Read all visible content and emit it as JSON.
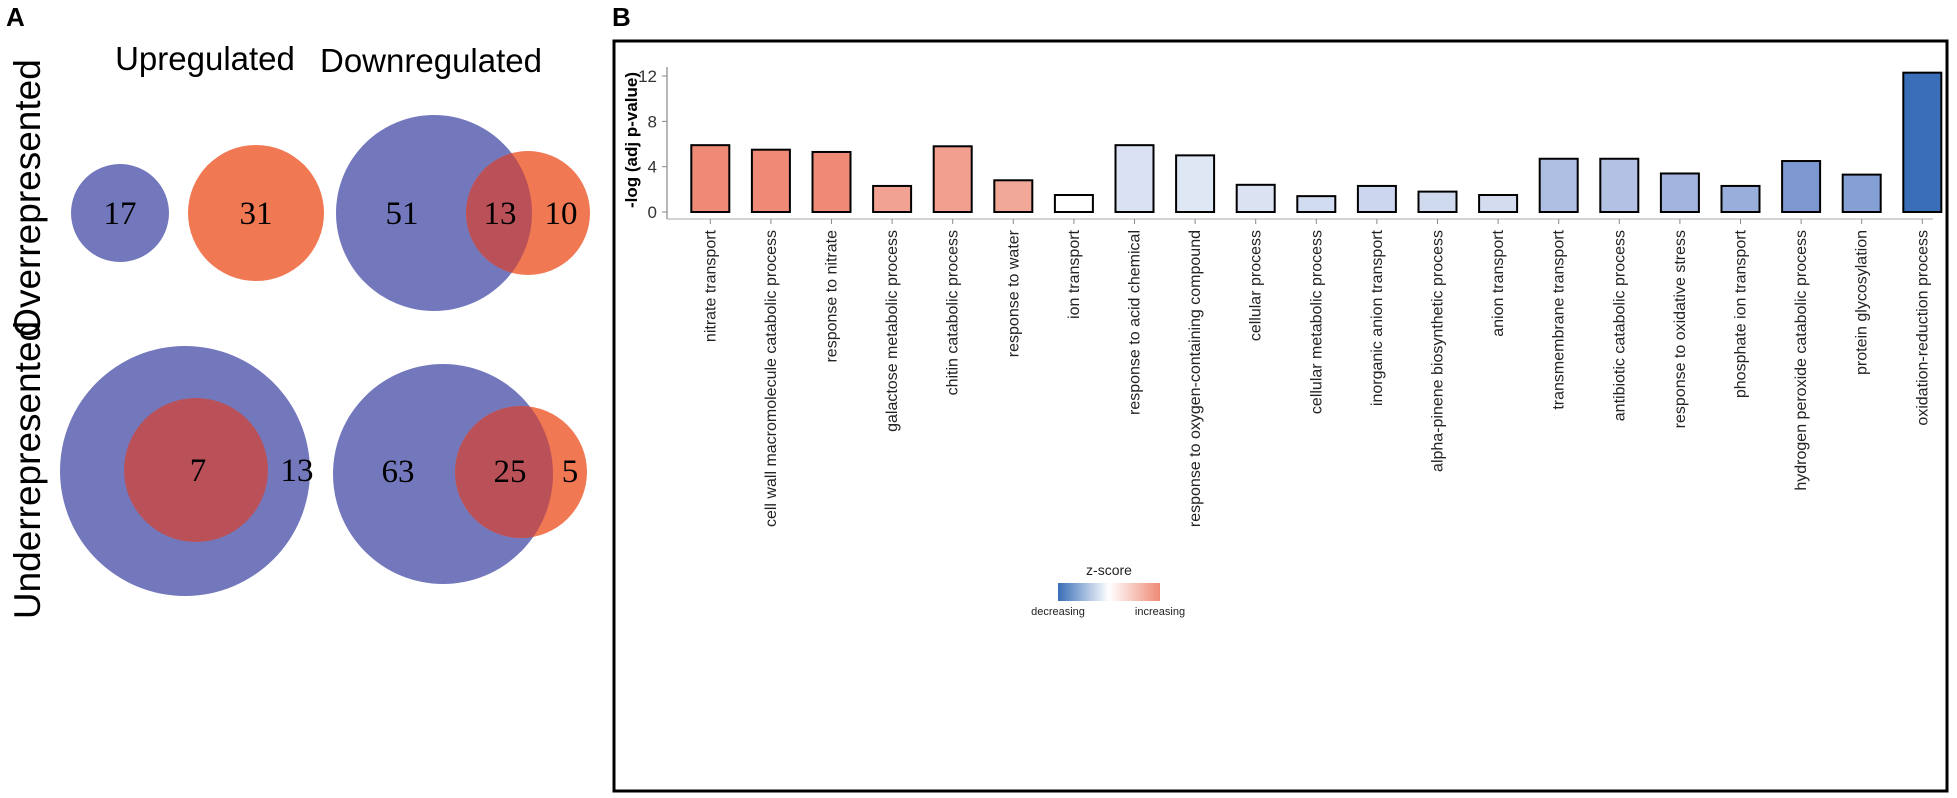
{
  "panel_a": {
    "label": "A",
    "col_headers": [
      "Upregulated",
      "Downregulated"
    ],
    "row_headers": [
      "Overrepresented",
      "Underrepresented"
    ],
    "colors": {
      "down": "#7378bd",
      "up": "#f07853",
      "overlap": "#bb5158"
    },
    "venns": [
      {
        "name": "over-up-down-only",
        "down_count": "17"
      },
      {
        "name": "over-up-up-only",
        "up_count": "31"
      },
      {
        "name": "over-down",
        "down_count": "51",
        "overlap_count": "13",
        "up_count": "10"
      },
      {
        "name": "under-up",
        "overlap_count": "7",
        "down_count": "13"
      },
      {
        "name": "under-down",
        "down_count": "63",
        "overlap_count": "25",
        "up_count": "5"
      }
    ]
  },
  "panel_b": {
    "label": "B"
  },
  "chart_data": {
    "type": "bar",
    "title": "",
    "xlabel": "",
    "ylabel": "-log (adj p-value)",
    "ylim": [
      0,
      12.8
    ],
    "yticks": [
      0,
      4,
      8,
      12
    ],
    "grid": false,
    "categories": [
      "nitrate transport",
      "cell wall macromolecule catabolic process",
      "response to nitrate",
      "galactose metabolic process",
      "chitin catabolic process",
      "response to water",
      "ion transport",
      "response to acid chemical",
      "response to oxygen-containing compound",
      "cellular process",
      "cellular metabolic process",
      "inorganic anion transport",
      "alpha-pinene biosynthetic process",
      "anion transport",
      "transmembrane transport",
      "antibiotic catabolic process",
      "response to oxidative stress",
      "phosphate ion transport",
      "hydrogen peroxide catabolic process",
      "protein glycosylation",
      "oxidation-reduction process"
    ],
    "values": [
      5.9,
      5.5,
      5.3,
      2.3,
      5.8,
      2.8,
      1.5,
      5.9,
      5.0,
      2.4,
      1.4,
      2.3,
      1.8,
      1.5,
      4.7,
      4.7,
      3.4,
      2.3,
      4.5,
      3.3,
      12.3
    ],
    "colors": [
      "#ef8a76",
      "#ef8a76",
      "#ef8a76",
      "#f2a292",
      "#f39f90",
      "#f2a898",
      "#ffffff",
      "#d9e1f2",
      "#dfe6f4",
      "#dbe3f3",
      "#d2dcf0",
      "#ccd6ee",
      "#d0daef",
      "#d4dcf0",
      "#afbfe3",
      "#b2c1e4",
      "#a3b5df",
      "#9aaedc",
      "#7d98d1",
      "#85a0d5",
      "#3a6eb8"
    ],
    "legend": {
      "title": "z-score",
      "low_label": "decreasing",
      "high_label": "increasing",
      "low_color": "#3a6eb8",
      "mid_color": "#ffffff",
      "high_color": "#ef8a76",
      "position": "bottom-center"
    }
  }
}
